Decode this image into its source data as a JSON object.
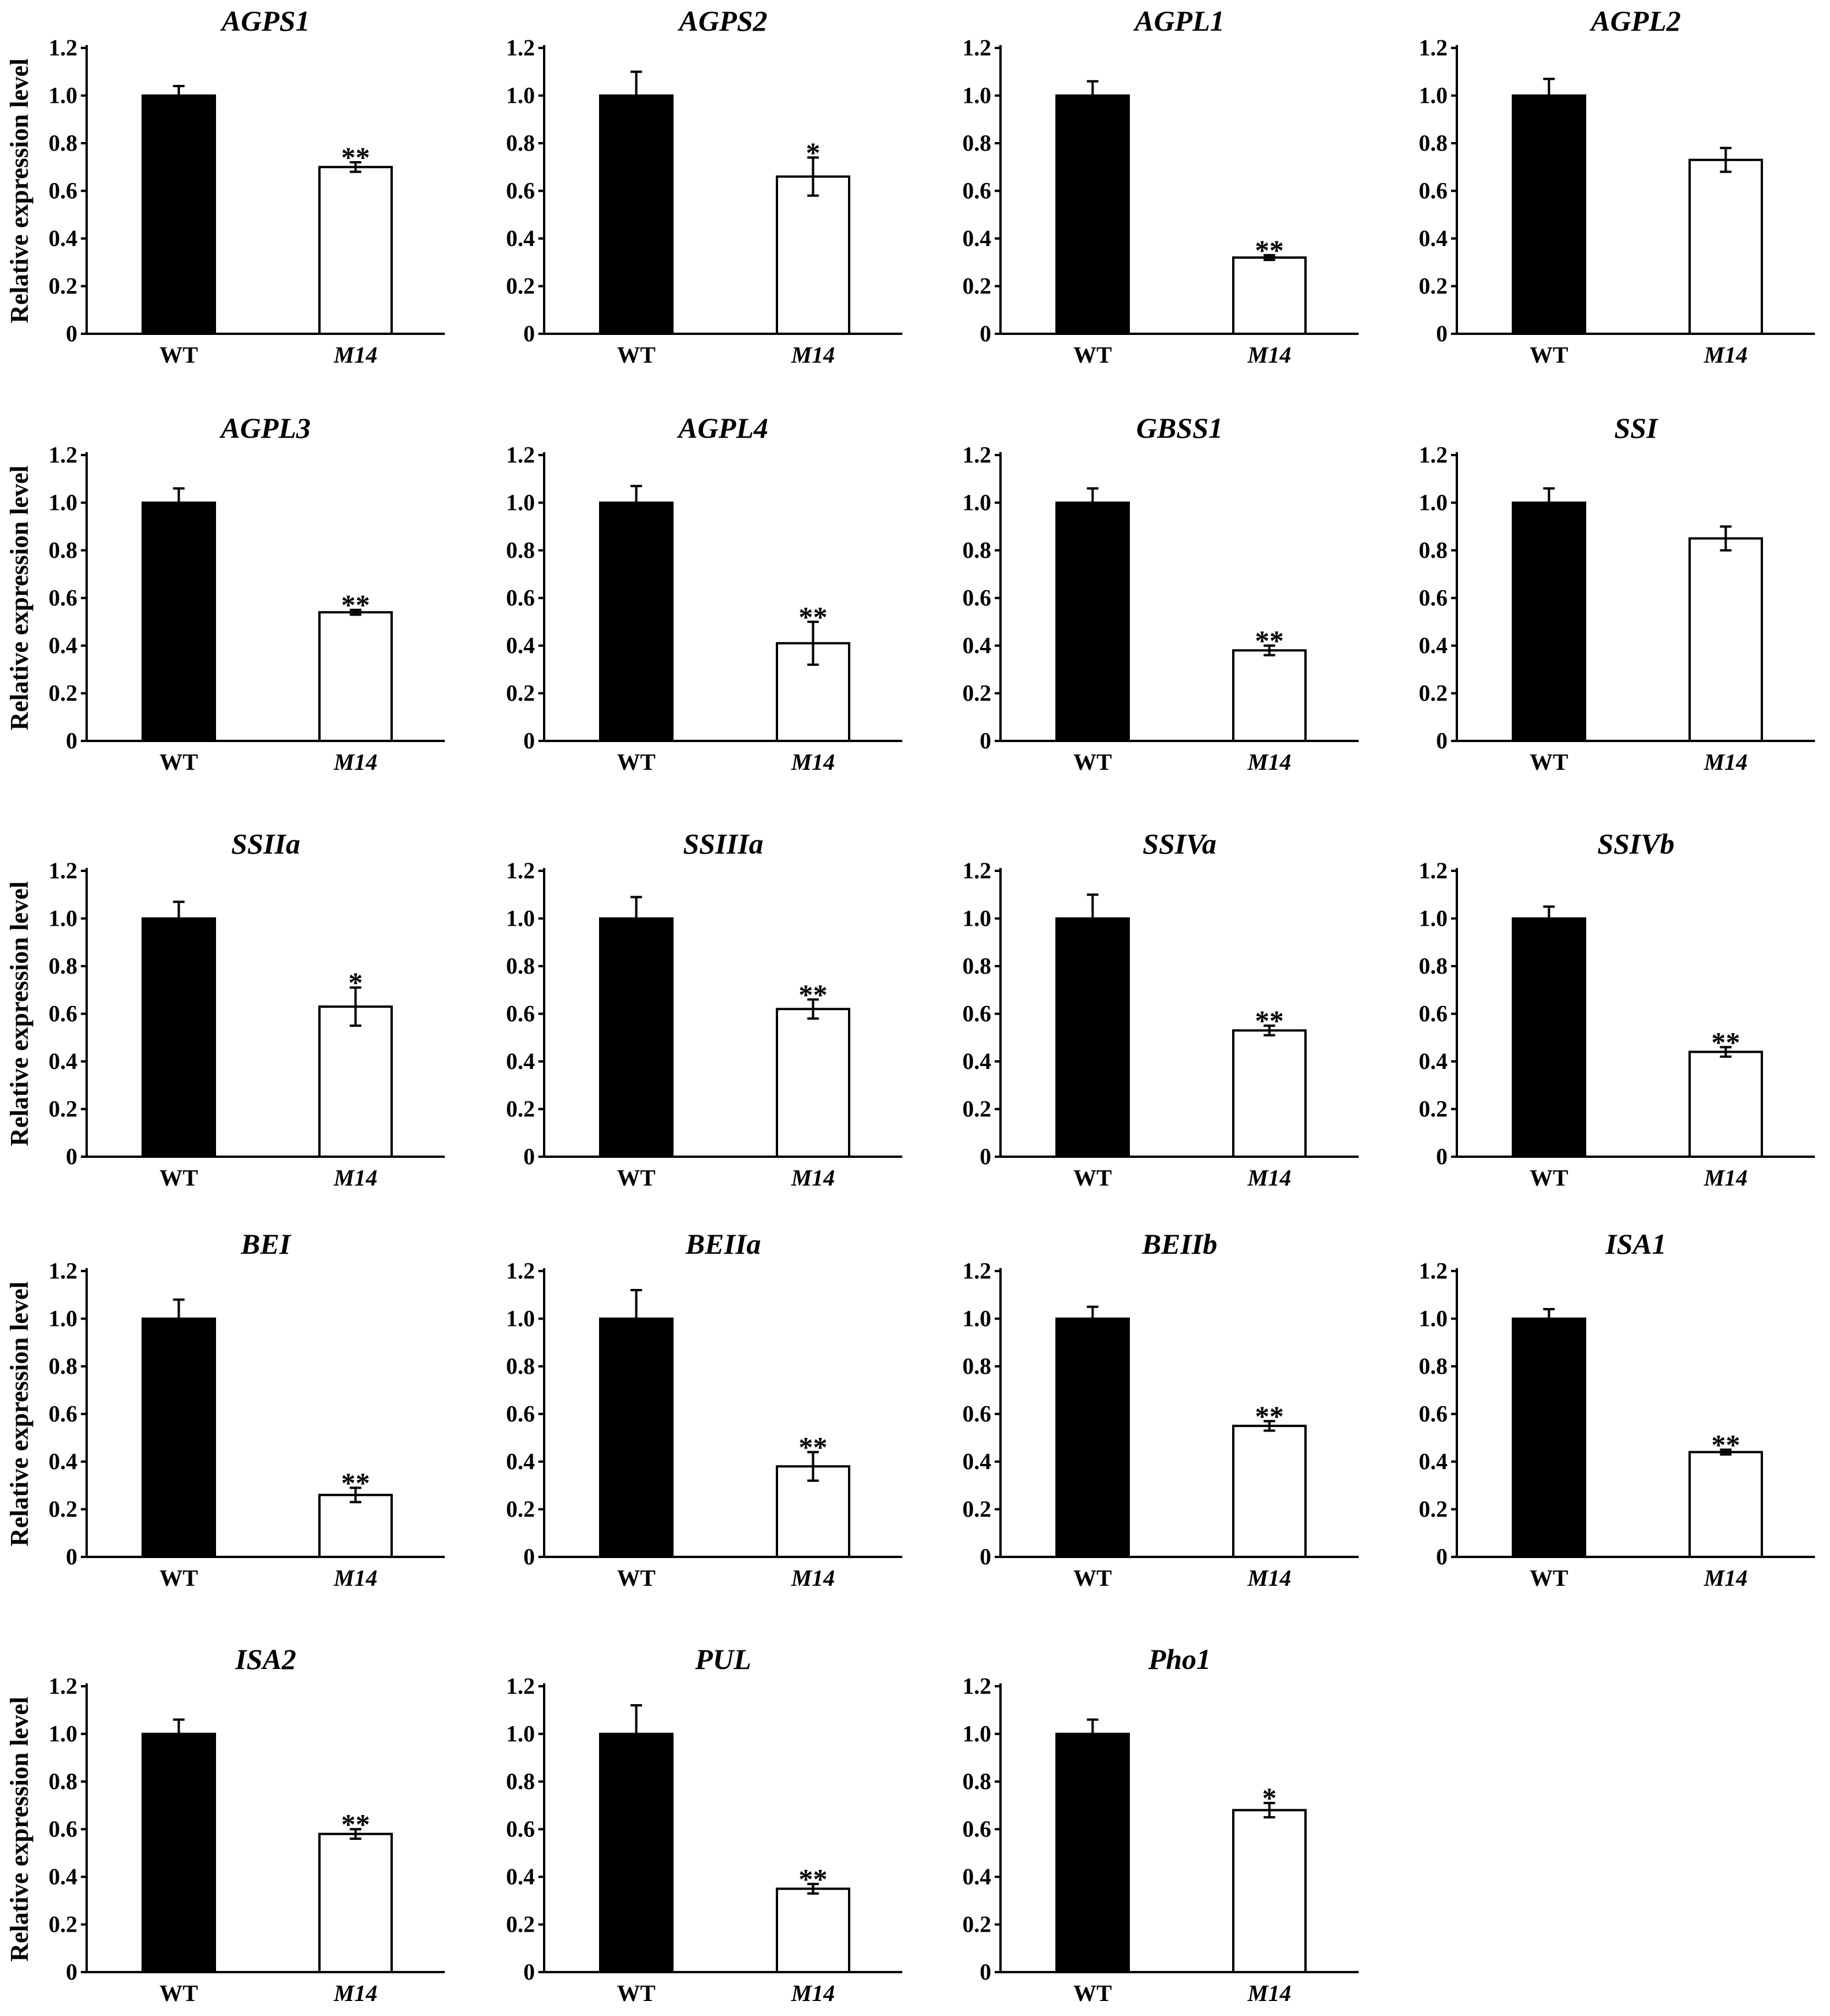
{
  "chart_data": {
    "type": "bar",
    "ylabel": "Relative expression level",
    "ylim": [
      0,
      1.2
    ],
    "yticks": [
      "0",
      "0.2",
      "0.4",
      "0.6",
      "0.8",
      "1.0",
      "1.2"
    ],
    "categories": [
      "WT",
      "M14"
    ],
    "colors": {
      "WT": "#000000",
      "M14": "#ffffff"
    },
    "panels": [
      {
        "title": "AGPS1",
        "values": [
          1.0,
          0.7
        ],
        "errors": [
          0.04,
          0.02
        ],
        "sig": "**",
        "show_ylabel": true
      },
      {
        "title": "AGPS2",
        "values": [
          1.0,
          0.66
        ],
        "errors": [
          0.1,
          0.08
        ],
        "sig": "*",
        "show_ylabel": false
      },
      {
        "title": "AGPL1",
        "values": [
          1.0,
          0.32
        ],
        "errors": [
          0.06,
          0.01
        ],
        "sig": "**",
        "show_ylabel": false
      },
      {
        "title": "AGPL2",
        "values": [
          1.0,
          0.73
        ],
        "errors": [
          0.07,
          0.05
        ],
        "sig": "",
        "show_ylabel": false
      },
      {
        "title": "AGPL3",
        "values": [
          1.0,
          0.54
        ],
        "errors": [
          0.06,
          0.01
        ],
        "sig": "**",
        "show_ylabel": true
      },
      {
        "title": "AGPL4",
        "values": [
          1.0,
          0.41
        ],
        "errors": [
          0.07,
          0.09
        ],
        "sig": "**",
        "show_ylabel": false
      },
      {
        "title": "GBSS1",
        "values": [
          1.0,
          0.38
        ],
        "errors": [
          0.06,
          0.02
        ],
        "sig": "**",
        "show_ylabel": false
      },
      {
        "title": "SSI",
        "values": [
          1.0,
          0.85
        ],
        "errors": [
          0.06,
          0.05
        ],
        "sig": "",
        "show_ylabel": false
      },
      {
        "title": "SSIIa",
        "values": [
          1.0,
          0.63
        ],
        "errors": [
          0.07,
          0.08
        ],
        "sig": "*",
        "show_ylabel": true
      },
      {
        "title": "SSIIIa",
        "values": [
          1.0,
          0.62
        ],
        "errors": [
          0.09,
          0.04
        ],
        "sig": "**",
        "show_ylabel": false
      },
      {
        "title": "SSIVa",
        "values": [
          1.0,
          0.53
        ],
        "errors": [
          0.1,
          0.02
        ],
        "sig": "**",
        "show_ylabel": false
      },
      {
        "title": "SSIVb",
        "values": [
          1.0,
          0.44
        ],
        "errors": [
          0.05,
          0.02
        ],
        "sig": "**",
        "show_ylabel": false
      },
      {
        "title": "BEI",
        "values": [
          1.0,
          0.26
        ],
        "errors": [
          0.08,
          0.03
        ],
        "sig": "**",
        "show_ylabel": true
      },
      {
        "title": "BEIIa",
        "values": [
          1.0,
          0.38
        ],
        "errors": [
          0.12,
          0.06
        ],
        "sig": "**",
        "show_ylabel": false
      },
      {
        "title": "BEIIb",
        "values": [
          1.0,
          0.55
        ],
        "errors": [
          0.05,
          0.02
        ],
        "sig": "**",
        "show_ylabel": false
      },
      {
        "title": "ISA1",
        "values": [
          1.0,
          0.44
        ],
        "errors": [
          0.04,
          0.01
        ],
        "sig": "**",
        "show_ylabel": false
      },
      {
        "title": "ISA2",
        "values": [
          1.0,
          0.58
        ],
        "errors": [
          0.06,
          0.02
        ],
        "sig": "**",
        "show_ylabel": true
      },
      {
        "title": "PUL",
        "values": [
          1.0,
          0.35
        ],
        "errors": [
          0.12,
          0.02
        ],
        "sig": "**",
        "show_ylabel": false
      },
      {
        "title": "Pho1",
        "values": [
          1.0,
          0.68
        ],
        "errors": [
          0.06,
          0.03
        ],
        "sig": "*",
        "show_ylabel": false
      }
    ]
  }
}
